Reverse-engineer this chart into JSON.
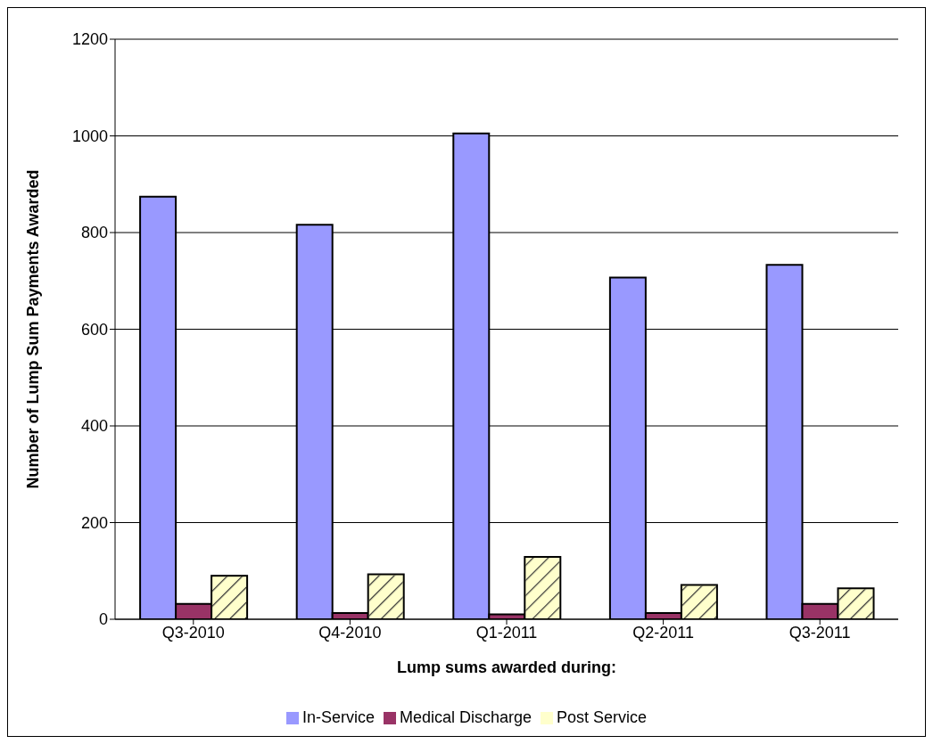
{
  "chart_data": {
    "type": "bar",
    "xlabel": "Lump sums awarded during:",
    "ylabel": "Number of Lump Sum Payments Awarded",
    "categories": [
      "Q3-2010",
      "Q4-2010",
      "Q1-2011",
      "Q2-2011",
      "Q3-2011"
    ],
    "series": [
      {
        "name": "In-Service",
        "color": "#9999ff",
        "values": [
          874,
          816,
          1005,
          707,
          733
        ]
      },
      {
        "name": "Medical Discharge",
        "color": "#993366",
        "values": [
          32,
          13,
          10,
          13,
          32
        ]
      },
      {
        "name": "Post Service",
        "color": "#ffffcc",
        "values": [
          90,
          93,
          129,
          71,
          64
        ]
      }
    ],
    "ylim": [
      0,
      1200
    ],
    "yticks": [
      0,
      200,
      400,
      600,
      800,
      1000,
      1200
    ],
    "grid": "y",
    "legend": "bottom"
  }
}
